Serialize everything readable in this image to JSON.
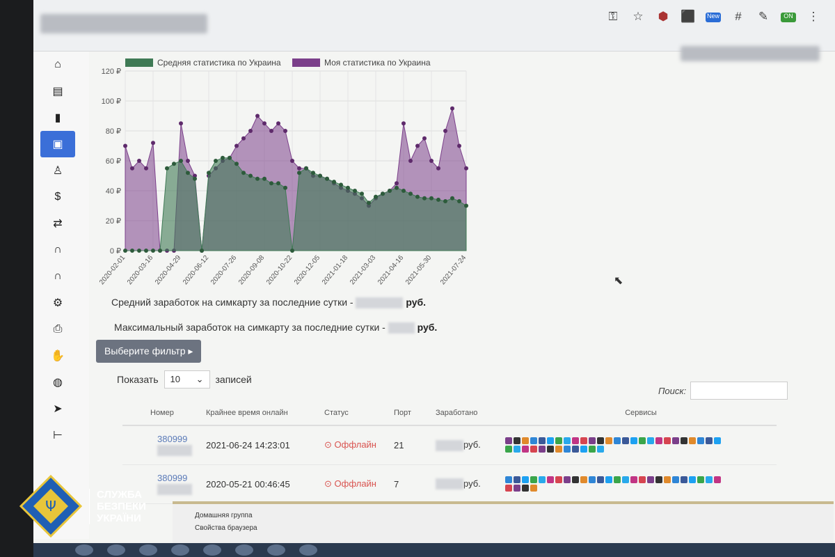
{
  "browser": {
    "url_fragment": "simcards",
    "toolbar_icons": [
      "key-icon",
      "star-icon",
      "adblock-icon",
      "extension-icon",
      "new-badge-icon",
      "hash-icon",
      "eyedropper-icon",
      "toggle-on-icon",
      "menu-icon"
    ],
    "new_badge": "New",
    "on_badge": "ON"
  },
  "sidebar": {
    "items": [
      {
        "icon": "home-icon",
        "glyph": "⌂"
      },
      {
        "icon": "document-icon",
        "glyph": "▤"
      },
      {
        "icon": "book-icon",
        "glyph": "▮"
      },
      {
        "icon": "sim-card-icon",
        "glyph": "▣",
        "active": true
      },
      {
        "icon": "person-icon",
        "glyph": "♙"
      },
      {
        "icon": "dollar-icon",
        "glyph": "$"
      },
      {
        "icon": "transfer-icon",
        "glyph": "⇄"
      },
      {
        "icon": "magnet-icon",
        "glyph": "∩"
      },
      {
        "icon": "magnet-icon-2",
        "glyph": "∩"
      },
      {
        "icon": "gear-icon",
        "glyph": "⚙"
      },
      {
        "icon": "printer-icon",
        "glyph": "⎙"
      },
      {
        "icon": "hand-icon",
        "glyph": "✋"
      },
      {
        "icon": "globe-icon",
        "glyph": "◍"
      },
      {
        "icon": "telegram-icon",
        "glyph": "➤"
      },
      {
        "icon": "collapse-icon",
        "glyph": "⊢"
      }
    ]
  },
  "chart_data": {
    "type": "area",
    "legend": "top",
    "grid": true,
    "ylim": [
      0,
      120
    ],
    "yticks": [
      "0 ₽",
      "20 ₽",
      "40 ₽",
      "60 ₽",
      "80 ₽",
      "100 ₽",
      "120 ₽"
    ],
    "xticks": [
      "2020-02-01",
      "2020-03-16",
      "2020-04-29",
      "2020-06-12",
      "2020-07-26",
      "2020-09-08",
      "2020-10-22",
      "2020-12-05",
      "2021-01-18",
      "2021-03-03",
      "2021-04-16",
      "2021-05-30",
      "2021-07-24"
    ],
    "x": [
      "2020-02-01",
      "2020-02-12",
      "2020-02-23",
      "2020-03-05",
      "2020-03-16",
      "2020-03-27",
      "2020-04-07",
      "2020-04-18",
      "2020-04-29",
      "2020-05-10",
      "2020-05-21",
      "2020-06-01",
      "2020-06-12",
      "2020-06-23",
      "2020-07-04",
      "2020-07-15",
      "2020-07-26",
      "2020-08-06",
      "2020-08-17",
      "2020-08-28",
      "2020-09-08",
      "2020-09-19",
      "2020-09-30",
      "2020-10-11",
      "2020-10-22",
      "2020-11-02",
      "2020-11-13",
      "2020-11-24",
      "2020-12-05",
      "2020-12-16",
      "2020-12-27",
      "2021-01-07",
      "2021-01-18",
      "2021-01-29",
      "2021-02-09",
      "2021-02-20",
      "2021-03-03",
      "2021-03-14",
      "2021-03-25",
      "2021-04-05",
      "2021-04-16",
      "2021-04-27",
      "2021-05-08",
      "2021-05-19",
      "2021-05-30",
      "2021-06-10",
      "2021-06-21",
      "2021-07-02",
      "2021-07-13",
      "2021-07-24"
    ],
    "series": [
      {
        "name": "Средняя статистика по Украина",
        "color": "#3f7a55",
        "values": [
          0,
          0,
          0,
          0,
          0,
          0,
          55,
          58,
          60,
          52,
          48,
          0,
          52,
          60,
          62,
          62,
          58,
          52,
          50,
          48,
          48,
          45,
          45,
          42,
          0,
          52,
          55,
          52,
          50,
          48,
          46,
          44,
          42,
          40,
          38,
          32,
          36,
          38,
          40,
          42,
          40,
          38,
          36,
          35,
          35,
          34,
          33,
          35,
          33,
          30
        ]
      },
      {
        "name": "Моя статистика по Украина",
        "color": "#7b3f8a",
        "values": [
          70,
          55,
          60,
          55,
          72,
          0,
          0,
          0,
          85,
          60,
          50,
          0,
          50,
          55,
          60,
          62,
          70,
          75,
          80,
          90,
          85,
          80,
          85,
          80,
          60,
          55,
          55,
          50,
          50,
          48,
          45,
          42,
          40,
          38,
          35,
          30,
          35,
          38,
          40,
          45,
          85,
          60,
          70,
          75,
          60,
          55,
          80,
          95,
          70,
          55
        ]
      }
    ]
  },
  "stats": {
    "avg_label": "Средний заработок на симкарту за последние сутки -",
    "max_label": "Максимальный заработок на симкарту за последние сутки -",
    "currency": "руб."
  },
  "filter_button": "Выберите фильтр ▸",
  "length": {
    "show": "Показать",
    "value": "10",
    "records": "записей"
  },
  "search": {
    "label": "Поиск:",
    "value": ""
  },
  "table": {
    "headers": [
      "Номер",
      "Крайнее время онлайн",
      "Статус",
      "Порт",
      "Заработано",
      "Сервисы"
    ],
    "rows": [
      {
        "number": "380999",
        "last_online": "2021-06-24 14:23:01",
        "status": "Оффлайн",
        "port": "21",
        "earned": "руб."
      },
      {
        "number": "380999",
        "last_online": "2020-05-21 00:46:45",
        "status": "Оффлайн",
        "port": "7",
        "earned": "руб."
      }
    ]
  },
  "context_menu": {
    "items": [
      "Домашняя группа",
      "Свойства браузера"
    ]
  },
  "watermark": {
    "text": [
      "СЛУЖБА",
      "БЕЗПЕКИ",
      "УКРАЇНИ"
    ]
  },
  "colors": {
    "avg": "#3f7a55",
    "mine": "#7b3f8a",
    "offline": "#d9534f",
    "active_nav": "#3b6fd8"
  }
}
